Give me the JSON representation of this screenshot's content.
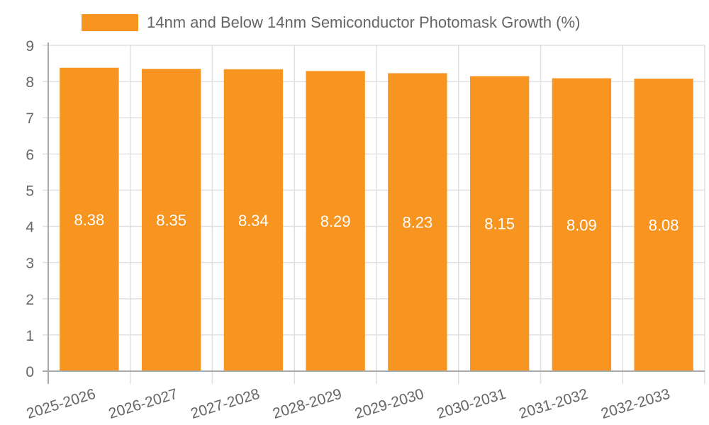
{
  "chart_data": {
    "type": "bar",
    "title": "",
    "legend": [
      {
        "label": "14nm and Below 14nm Semiconductor Photomask Growth (%)",
        "color": "#f79520"
      }
    ],
    "legend_position": "top",
    "categories": [
      "2025-2026",
      "2026-2027",
      "2027-2028",
      "2028-2029",
      "2029-2030",
      "2030-2031",
      "2031-2032",
      "2032-2033"
    ],
    "series": [
      {
        "name": "14nm and Below 14nm Semiconductor Photomask Growth (%)",
        "values": [
          8.38,
          8.35,
          8.34,
          8.29,
          8.23,
          8.15,
          8.09,
          8.08
        ],
        "color": "#f79520"
      }
    ],
    "data_labels": [
      "8.38",
      "8.35",
      "8.34",
      "8.29",
      "8.23",
      "8.15",
      "8.09",
      "8.08"
    ],
    "xlabel": "",
    "ylabel": "",
    "ylim": [
      0,
      9
    ],
    "yticks": [
      "0",
      "1",
      "2",
      "3",
      "4",
      "5",
      "6",
      "7",
      "8",
      "9"
    ],
    "grid": true
  },
  "legend": {
    "label": "14nm and Below 14nm Semiconductor Photomask Growth (%)",
    "color": "#f79520"
  }
}
